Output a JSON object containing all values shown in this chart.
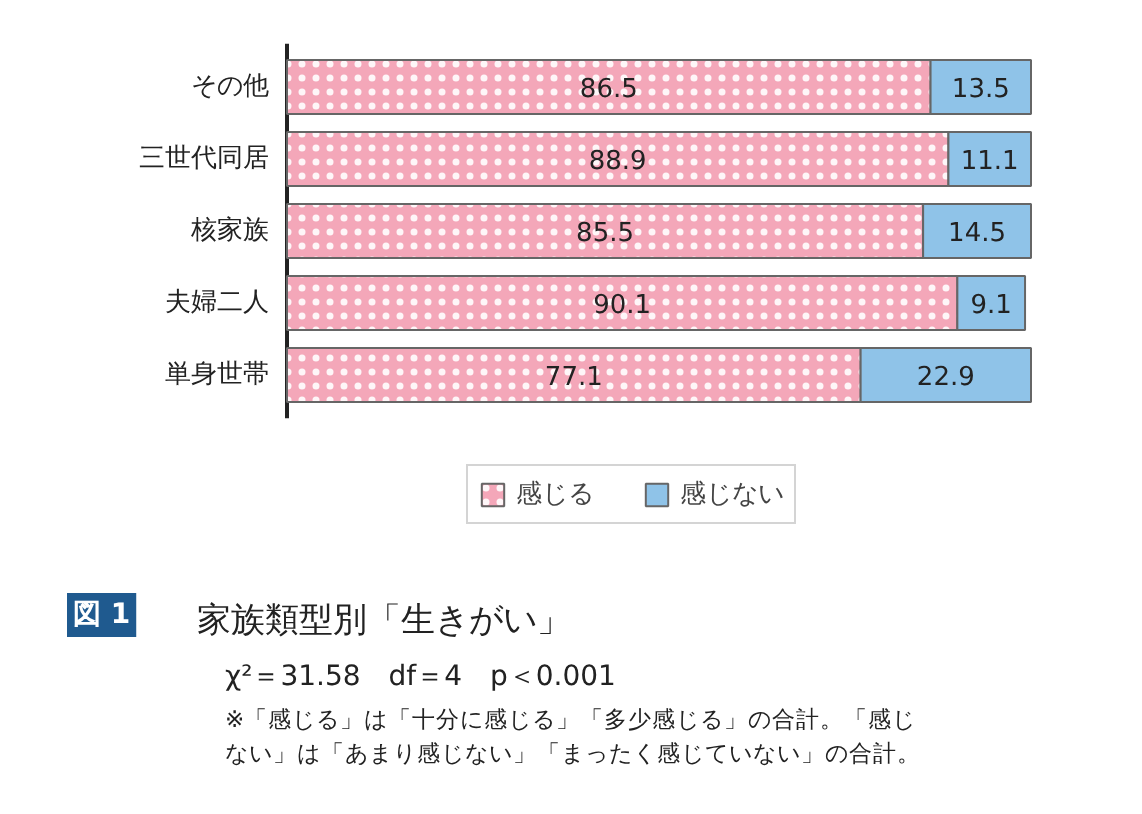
{
  "chart_data": {
    "type": "bar",
    "orientation": "horizontal",
    "stacked": true,
    "data_labels": true,
    "legend": "bottom",
    "grid": false,
    "tick_labels": "y",
    "title": "家族類型別「生きがい」",
    "subtitle": "χ²＝31.58　df＝4　p＜0.001",
    "annotations": [
      "図 1",
      "※「感じる」は「十分に感じる」「多少感じる」の合計。「感じない」は「あまり感じない」「まったく感じていない」の合計。"
    ],
    "categories": [
      "その他",
      "三世代同居",
      "核家族",
      "夫婦二人",
      "単身世帯"
    ],
    "series": [
      {
        "name": "感じる",
        "color": "#f4a7b9",
        "values": [
          86.5,
          88.9,
          85.5,
          90.1,
          77.1
        ]
      },
      {
        "name": "感じない",
        "color": "#8fc3e8",
        "values": [
          13.5,
          11.1,
          14.5,
          9.1,
          22.9
        ]
      }
    ]
  }
}
